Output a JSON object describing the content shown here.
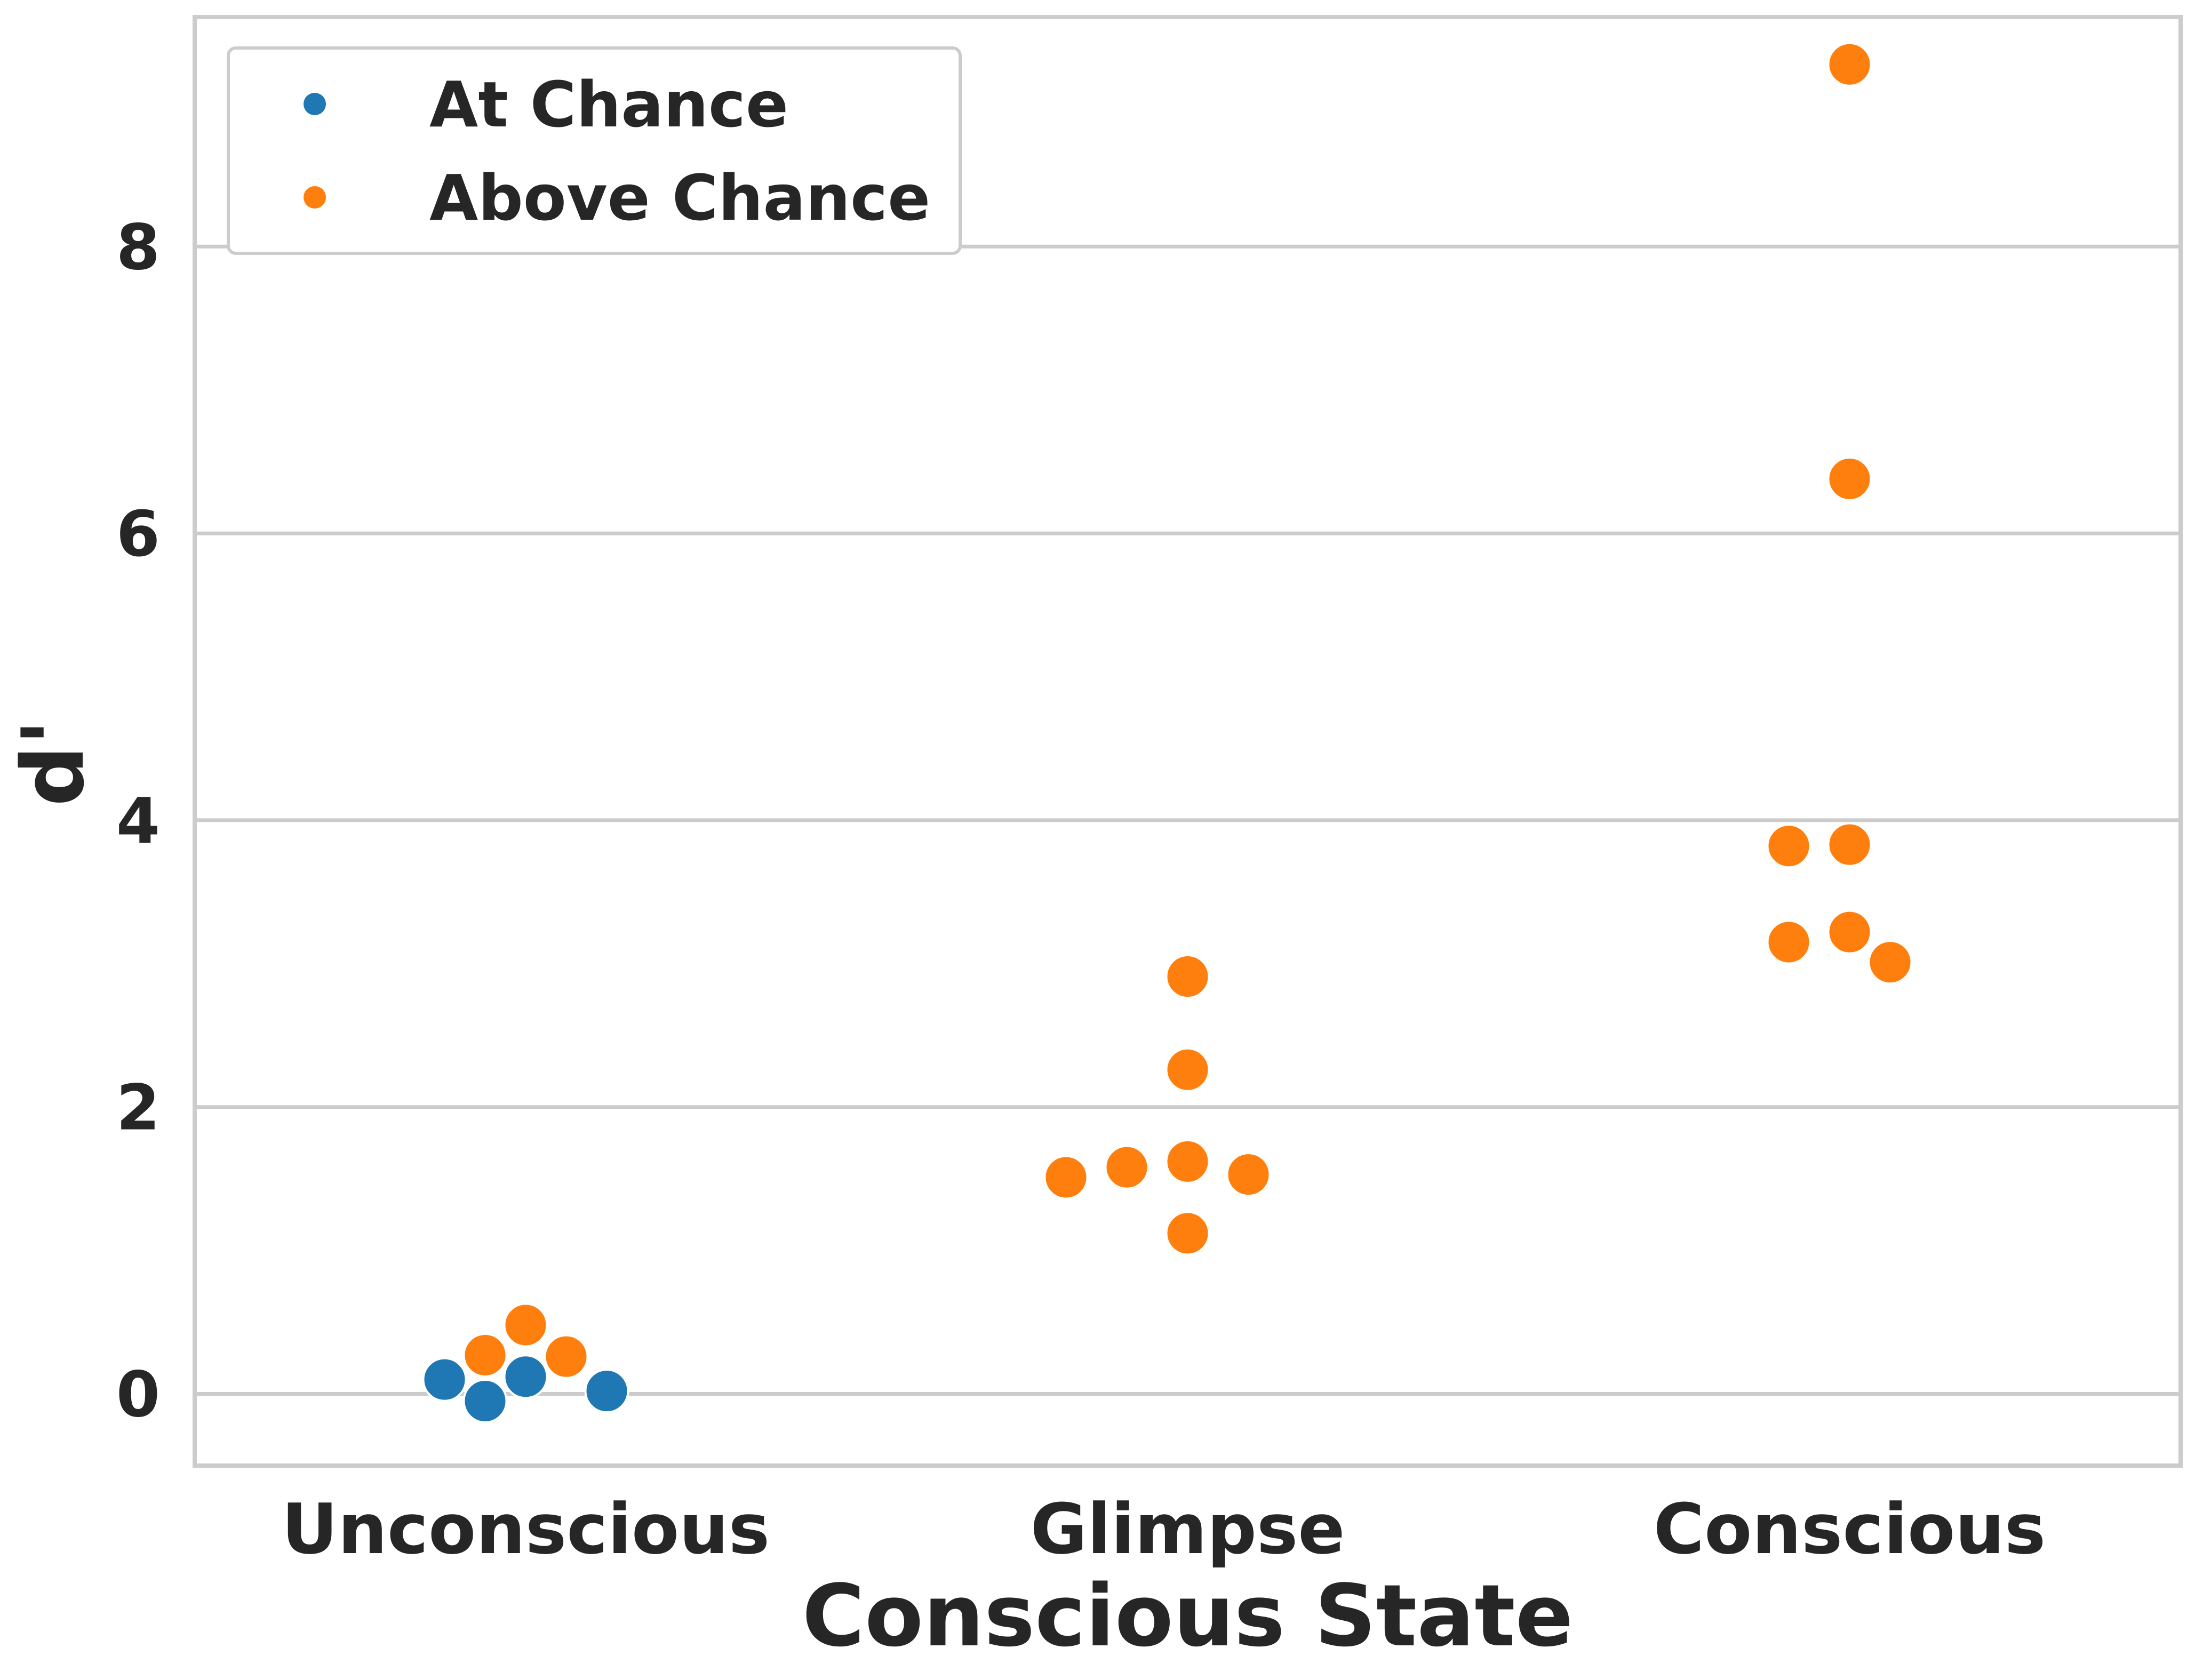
{
  "chart_data": {
    "type": "scatter",
    "subtype": "swarm",
    "title": "",
    "xlabel": "Conscious State",
    "ylabel": "d'",
    "categories": [
      "Unconscious",
      "Glimpse",
      "Conscious"
    ],
    "ylim": [
      -0.5,
      9.6
    ],
    "yticks": [
      0,
      2,
      4,
      6,
      8
    ],
    "grid": "horizontal",
    "legend_position": "top-left",
    "series": [
      {
        "name": "At Chance",
        "color": "#1f77b4",
        "points": [
          {
            "category": "Unconscious",
            "y": 0.02
          },
          {
            "category": "Unconscious",
            "y": -0.05
          },
          {
            "category": "Unconscious",
            "y": 0.1
          },
          {
            "category": "Unconscious",
            "y": 0.12
          }
        ]
      },
      {
        "name": "Above Chance",
        "color": "#ff7f0e",
        "points": [
          {
            "category": "Unconscious",
            "y": 0.27
          },
          {
            "category": "Unconscious",
            "y": 0.26
          },
          {
            "category": "Unconscious",
            "y": 0.48
          },
          {
            "category": "Glimpse",
            "y": 2.91
          },
          {
            "category": "Glimpse",
            "y": 2.26
          },
          {
            "category": "Glimpse",
            "y": 1.62
          },
          {
            "category": "Glimpse",
            "y": 1.53
          },
          {
            "category": "Glimpse",
            "y": 1.51
          },
          {
            "category": "Glimpse",
            "y": 1.58
          },
          {
            "category": "Glimpse",
            "y": 1.12
          },
          {
            "category": "Conscious",
            "y": 9.27
          },
          {
            "category": "Conscious",
            "y": 6.38
          },
          {
            "category": "Conscious",
            "y": 3.83
          },
          {
            "category": "Conscious",
            "y": 3.82
          },
          {
            "category": "Conscious",
            "y": 3.22
          },
          {
            "category": "Conscious",
            "y": 3.15
          },
          {
            "category": "Conscious",
            "y": 3.01
          }
        ]
      }
    ]
  }
}
